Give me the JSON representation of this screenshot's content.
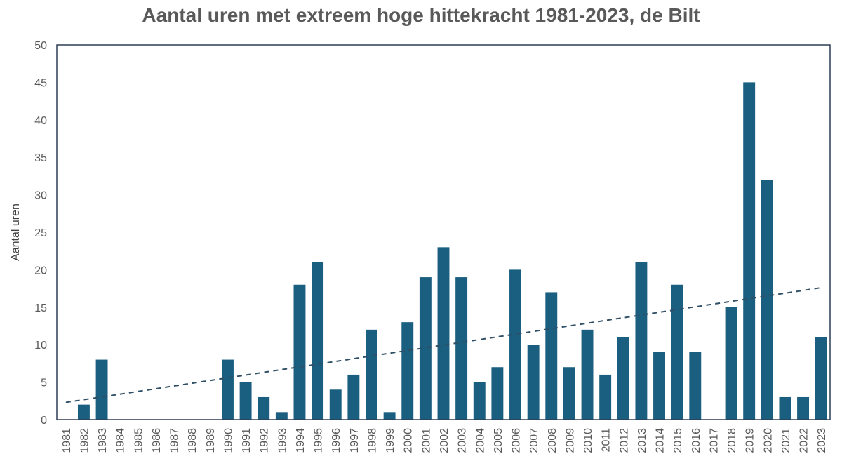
{
  "chart_data": {
    "type": "bar",
    "title": "Aantal uren met extreem hoge hittekracht 1981-2023, de Bilt",
    "xlabel": "",
    "ylabel": "Aantal uren",
    "ylim": [
      0,
      50
    ],
    "yticks": [
      0,
      5,
      10,
      15,
      20,
      25,
      30,
      35,
      40,
      45,
      50
    ],
    "categories": [
      "1981",
      "1982",
      "1983",
      "1984",
      "1985",
      "1986",
      "1987",
      "1988",
      "1989",
      "1990",
      "1991",
      "1992",
      "1993",
      "1994",
      "1995",
      "1996",
      "1997",
      "1998",
      "1999",
      "2000",
      "2001",
      "2002",
      "2003",
      "2004",
      "2005",
      "2006",
      "2007",
      "2008",
      "2009",
      "2010",
      "2011",
      "2012",
      "2013",
      "2014",
      "2015",
      "2016",
      "2017",
      "2018",
      "2019",
      "2020",
      "2021",
      "2022",
      "2023"
    ],
    "values": [
      0,
      2,
      8,
      0,
      0,
      0,
      0,
      0,
      0,
      8,
      5,
      3,
      1,
      18,
      21,
      4,
      6,
      12,
      1,
      13,
      19,
      23,
      19,
      5,
      7,
      20,
      10,
      17,
      7,
      12,
      6,
      11,
      21,
      9,
      18,
      9,
      0,
      15,
      45,
      32,
      3,
      3,
      11
    ],
    "trendline": {
      "style": "dashed",
      "start": 2.3,
      "end": 17.6
    },
    "grid": false,
    "legend": "none",
    "colors": {
      "bar": "#1a5e80",
      "trend": "#2f4f66",
      "frame": "#2d3e55"
    }
  }
}
